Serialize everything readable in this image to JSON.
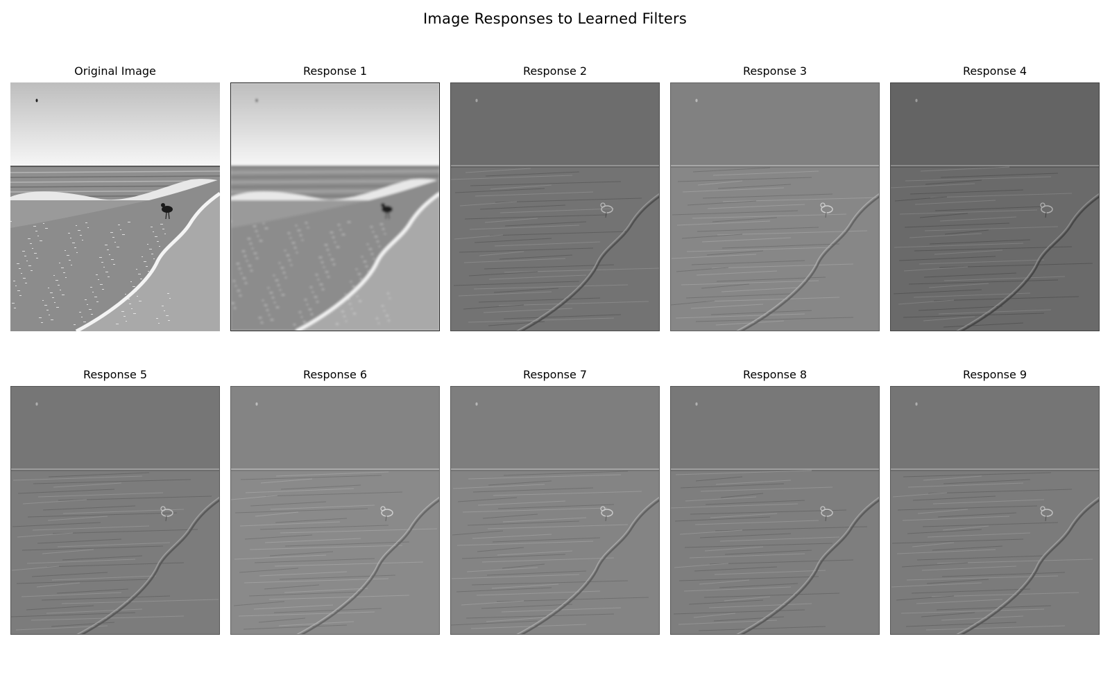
{
  "figure": {
    "title": "Image Responses to Learned Filters"
  },
  "panels": [
    {
      "title": "Original Image",
      "kind": "original",
      "background": "#d3d3d3"
    },
    {
      "title": "Response 1",
      "kind": "blur",
      "background": "#c8c8c8"
    },
    {
      "title": "Response 2",
      "kind": "edge",
      "background": "#737373"
    },
    {
      "title": "Response 3",
      "kind": "edge",
      "background": "#878787"
    },
    {
      "title": "Response 4",
      "kind": "edge",
      "background": "#6a6a6a"
    },
    {
      "title": "Response 5",
      "kind": "edge",
      "background": "#7c7c7c"
    },
    {
      "title": "Response 6",
      "kind": "edge",
      "background": "#8a8a8a"
    },
    {
      "title": "Response 7",
      "kind": "edge",
      "background": "#848484"
    },
    {
      "title": "Response 8",
      "kind": "edge",
      "background": "#7e7e7e"
    },
    {
      "title": "Response 9",
      "kind": "edge",
      "background": "#7b7b7b"
    }
  ]
}
